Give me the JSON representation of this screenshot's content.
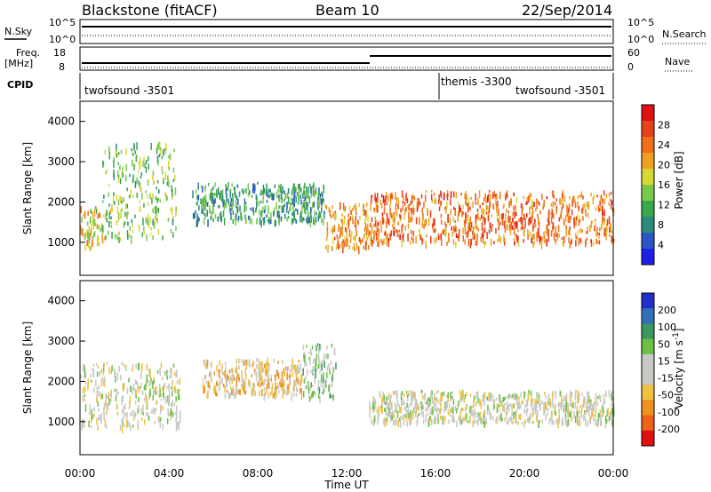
{
  "header": {
    "station": "Blackstone (fitACF)",
    "beam": "Beam 10",
    "date": "22/Sep/2014"
  },
  "status_panels": {
    "nsky_label": "N.Sky",
    "nsearch_label": "N.Search",
    "noise_ticks": [
      "10^5",
      "10^0"
    ],
    "freq_label_top": "Freq.",
    "freq_label_bottom": "[MHz]",
    "freq_ticks": [
      "18",
      "8"
    ],
    "nave_label": "Nave",
    "nave_ticks": [
      "60",
      "0"
    ],
    "cpid_label": "CPID",
    "cpid_texts": [
      "twofsound -3501",
      "themis -3300",
      "twofsound -3501"
    ]
  },
  "colors": {
    "power_scale": [
      "#1f1fe6",
      "#2a56c8",
      "#2c8a7a",
      "#3aa84a",
      "#79c94a",
      "#d8d832",
      "#f0a020",
      "#f07018",
      "#e8401a",
      "#e01010"
    ],
    "velocity_scale": [
      "#2030c8",
      "#2f70b8",
      "#3a9860",
      "#6cc048",
      "#c8c8c4",
      "#c8c8c4",
      "#f0c040",
      "#f09020",
      "#f06018",
      "#e01010"
    ]
  },
  "chart_data": [
    {
      "type": "heatmap",
      "name": "power",
      "ylabel": "Slant Range [km]",
      "yticks": [
        1000,
        2000,
        3000,
        4000
      ],
      "ylim": [
        180,
        4500
      ],
      "xlim": [
        0,
        24
      ],
      "colorbar": {
        "label": "Power [dB]",
        "ticks": [
          4,
          8,
          12,
          16,
          20,
          24,
          28
        ],
        "range": [
          0,
          32
        ]
      },
      "echo_bands": [
        {
          "t": [
            0.0,
            1.0
          ],
          "range_km": [
            900,
            1900
          ],
          "value_db": 18
        },
        {
          "t": [
            1.0,
            4.3
          ],
          "range_km": [
            1100,
            3500
          ],
          "value_db": 14
        },
        {
          "t": [
            5.0,
            11.0
          ],
          "range_km": [
            1550,
            2500
          ],
          "value_db": 10
        },
        {
          "t": [
            11.0,
            13.0
          ],
          "range_km": [
            850,
            2000
          ],
          "value_db": 22
        },
        {
          "t": [
            13.0,
            24.0
          ],
          "range_km": [
            1000,
            2300
          ],
          "value_db": 24
        }
      ]
    },
    {
      "type": "heatmap",
      "name": "velocity",
      "ylabel": "Slant Range [km]",
      "xlabel": "Time UT",
      "yticks": [
        1000,
        2000,
        3000,
        4000
      ],
      "ylim": [
        180,
        4500
      ],
      "xlim": [
        0,
        24
      ],
      "xtick_labels": [
        "00:00",
        "04:00",
        "08:00",
        "12:00",
        "16:00",
        "20:00",
        "00:00"
      ],
      "colorbar": {
        "label_main": "Velocity [m s",
        "label_exp": "-1",
        "label_tail": "]",
        "ticks": [
          200,
          100,
          50,
          15,
          -15,
          -50,
          -100,
          -200
        ]
      },
      "echo_bands": [
        {
          "t": [
            0.0,
            4.5
          ],
          "range_km": [
            900,
            2500
          ],
          "value_ms": 0
        },
        {
          "t": [
            5.5,
            10.0
          ],
          "range_km": [
            1700,
            2600
          ],
          "value_ms": -60
        },
        {
          "t": [
            10.0,
            11.5
          ],
          "range_km": [
            1600,
            3000
          ],
          "value_ms": 40
        },
        {
          "t": [
            13.0,
            24.0
          ],
          "range_km": [
            1000,
            1800
          ],
          "value_ms": 0
        }
      ]
    }
  ]
}
